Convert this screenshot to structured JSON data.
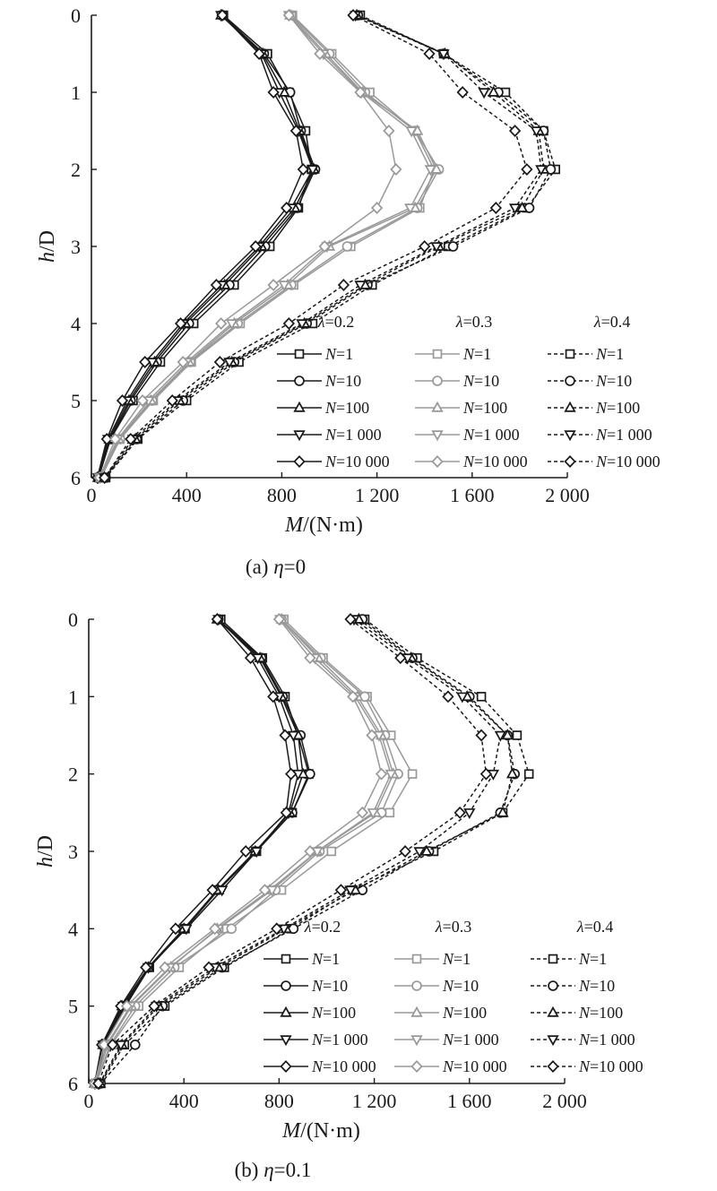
{
  "x_axis_label_var": "M",
  "x_axis_label_unit": "/(N·m)",
  "y_axis_label_h": "h",
  "y_axis_label_d": "/D",
  "legend_groups": [
    {
      "sym": "λ",
      "val": "=0.2"
    },
    {
      "sym": "λ",
      "val": "=0.3"
    },
    {
      "sym": "λ",
      "val": "=0.4"
    }
  ],
  "legend_entries": [
    {
      "var": "N",
      "val": "=1",
      "marker": "square"
    },
    {
      "var": "N",
      "val": "=10",
      "marker": "circle"
    },
    {
      "var": "N",
      "val": "=100",
      "marker": "triangle-up"
    },
    {
      "var": "N",
      "val": "=1 000",
      "marker": "triangle-down"
    },
    {
      "var": "N",
      "val": "=10 000",
      "marker": "diamond"
    }
  ],
  "styles": {
    "lambda_0.2": {
      "color": "#1a1a1a",
      "dash": "solid"
    },
    "lambda_0.3": {
      "color": "#999999",
      "dash": "solid"
    },
    "lambda_0.4": {
      "color": "#1a1a1a",
      "dash": "dashed"
    }
  },
  "chart_data": [
    {
      "type": "line",
      "caption_prefix": "(a) ",
      "caption_var": "η",
      "caption_val": "=0",
      "xlabel": "M/(N·m)",
      "ylabel": "h/D",
      "xlim": [
        0,
        2000
      ],
      "ylim": [
        6,
        0
      ],
      "y_inverted": true,
      "x_ticks": [
        0,
        400,
        800,
        1200,
        1600,
        2000
      ],
      "x_tick_labels": [
        "0",
        "400",
        "800",
        "1 200",
        "1 600",
        "2 000"
      ],
      "y_ticks": [
        0,
        1,
        2,
        3,
        4,
        5,
        6
      ],
      "y_tick_labels": [
        "0",
        "1",
        "2",
        "3",
        "4",
        "5",
        "6"
      ],
      "y": [
        0,
        0.5,
        1,
        1.5,
        2,
        2.5,
        3,
        3.5,
        4,
        4.5,
        5,
        5.5,
        6
      ],
      "series": [
        {
          "group": "λ=0.2",
          "name": "N=1",
          "marker": "square",
          "values": [
            555,
            740,
            830,
            900,
            925,
            870,
            750,
            600,
            430,
            290,
            175,
            80,
            30
          ]
        },
        {
          "group": "λ=0.2",
          "name": "N=10",
          "marker": "circle",
          "values": [
            550,
            725,
            835,
            880,
            940,
            865,
            730,
            580,
            410,
            275,
            165,
            80,
            30
          ]
        },
        {
          "group": "λ=0.2",
          "name": "N=100",
          "marker": "triangle-up",
          "values": [
            545,
            720,
            810,
            875,
            935,
            855,
            715,
            560,
            395,
            265,
            158,
            75,
            28
          ]
        },
        {
          "group": "λ=0.2",
          "name": "N=1 000",
          "marker": "triangle-down",
          "values": [
            545,
            715,
            790,
            870,
            930,
            840,
            705,
            548,
            385,
            255,
            150,
            70,
            28
          ]
        },
        {
          "group": "λ=0.2",
          "name": "N=10 000",
          "marker": "diamond",
          "values": [
            550,
            705,
            765,
            860,
            890,
            820,
            690,
            525,
            375,
            225,
            130,
            65,
            25
          ]
        },
        {
          "group": "λ=0.3",
          "name": "N=1",
          "marker": "square",
          "values": [
            845,
            1010,
            1170,
            1360,
            1440,
            1380,
            1090,
            850,
            625,
            420,
            260,
            120,
            40
          ]
        },
        {
          "group": "λ=0.3",
          "name": "N=10",
          "marker": "circle",
          "values": [
            840,
            1000,
            1150,
            1360,
            1460,
            1370,
            1075,
            840,
            615,
            415,
            255,
            120,
            40
          ]
        },
        {
          "group": "λ=0.3",
          "name": "N=100",
          "marker": "triangle-up",
          "values": [
            835,
            985,
            1140,
            1370,
            1450,
            1360,
            1000,
            825,
            600,
            410,
            250,
            115,
            40
          ]
        },
        {
          "group": "λ=0.3",
          "name": "N=1 000",
          "marker": "triangle-down",
          "values": [
            830,
            975,
            1135,
            1345,
            1425,
            1340,
            990,
            810,
            590,
            400,
            240,
            110,
            35
          ]
        },
        {
          "group": "λ=0.3",
          "name": "N=10 000",
          "marker": "diamond",
          "values": [
            830,
            960,
            1130,
            1250,
            1280,
            1200,
            980,
            765,
            545,
            385,
            215,
            100,
            35
          ]
        },
        {
          "group": "λ=0.4",
          "name": "N=1",
          "marker": "square",
          "values": [
            1130,
            1480,
            1740,
            1900,
            1950,
            1830,
            1500,
            1180,
            930,
            620,
            400,
            195,
            60
          ]
        },
        {
          "group": "λ=0.4",
          "name": "N=10",
          "marker": "circle",
          "values": [
            1120,
            1480,
            1710,
            1900,
            1930,
            1840,
            1520,
            1160,
            905,
            600,
            385,
            190,
            60
          ]
        },
        {
          "group": "λ=0.4",
          "name": "N=100",
          "marker": "triangle-up",
          "values": [
            1115,
            1485,
            1690,
            1880,
            1900,
            1810,
            1460,
            1150,
            895,
            590,
            370,
            185,
            55
          ]
        },
        {
          "group": "λ=0.4",
          "name": "N=1 000",
          "marker": "triangle-down",
          "values": [
            1110,
            1480,
            1650,
            1870,
            1890,
            1780,
            1450,
            1130,
            885,
            580,
            360,
            175,
            55
          ]
        },
        {
          "group": "λ=0.4",
          "name": "N=10 000",
          "marker": "diamond",
          "values": [
            1100,
            1420,
            1560,
            1780,
            1830,
            1700,
            1400,
            1060,
            830,
            540,
            340,
            165,
            55
          ]
        }
      ]
    },
    {
      "type": "line",
      "caption_prefix": "(b) ",
      "caption_var": "η",
      "caption_val": "=0.1",
      "xlabel": "M/(N·m)",
      "ylabel": "h/D",
      "xlim": [
        0,
        2000
      ],
      "ylim": [
        6,
        0
      ],
      "y_inverted": true,
      "x_ticks": [
        0,
        400,
        800,
        1200,
        1600,
        2000
      ],
      "x_tick_labels": [
        "0",
        "400",
        "800",
        "1 200",
        "1 600",
        "2 000"
      ],
      "y_ticks": [
        0,
        1,
        2,
        3,
        4,
        5,
        6
      ],
      "y_tick_labels": [
        "0",
        "1",
        "2",
        "3",
        "4",
        "5",
        "6"
      ],
      "y": [
        0,
        0.5,
        1,
        1.5,
        2,
        2.5,
        3,
        3.5,
        4,
        4.5,
        5,
        5.5,
        6
      ],
      "series": [
        {
          "group": "λ=0.2",
          "name": "N=1",
          "marker": "square",
          "values": [
            555,
            730,
            825,
            880,
            925,
            855,
            705,
            545,
            405,
            255,
            155,
            65,
            30
          ]
        },
        {
          "group": "λ=0.2",
          "name": "N=10",
          "marker": "circle",
          "values": [
            545,
            725,
            815,
            890,
            930,
            855,
            700,
            540,
            400,
            250,
            150,
            65,
            28
          ]
        },
        {
          "group": "λ=0.2",
          "name": "N=100",
          "marker": "triangle-up",
          "values": [
            540,
            720,
            810,
            880,
            900,
            845,
            700,
            545,
            400,
            250,
            140,
            60,
            25
          ]
        },
        {
          "group": "λ=0.2",
          "name": "N=1 000",
          "marker": "triangle-down",
          "values": [
            545,
            710,
            800,
            860,
            880,
            840,
            705,
            560,
            410,
            250,
            145,
            60,
            25
          ]
        },
        {
          "group": "λ=0.2",
          "name": "N=10 000",
          "marker": "diamond",
          "values": [
            540,
            680,
            775,
            825,
            850,
            830,
            660,
            520,
            365,
            240,
            135,
            55,
            25
          ]
        },
        {
          "group": "λ=0.3",
          "name": "N=1",
          "marker": "square",
          "values": [
            820,
            985,
            1170,
            1270,
            1360,
            1265,
            1020,
            810,
            580,
            380,
            210,
            95,
            30
          ]
        },
        {
          "group": "λ=0.3",
          "name": "N=10",
          "marker": "circle",
          "values": [
            810,
            975,
            1160,
            1245,
            1300,
            1230,
            970,
            785,
            600,
            360,
            195,
            90,
            30
          ]
        },
        {
          "group": "λ=0.3",
          "name": "N=100",
          "marker": "triangle-up",
          "values": [
            810,
            965,
            1130,
            1230,
            1280,
            1205,
            960,
            760,
            540,
            345,
            180,
            80,
            28
          ]
        },
        {
          "group": "λ=0.3",
          "name": "N=1 000",
          "marker": "triangle-down",
          "values": [
            805,
            950,
            1120,
            1220,
            1270,
            1195,
            960,
            770,
            545,
            340,
            175,
            75,
            28
          ]
        },
        {
          "group": "λ=0.3",
          "name": "N=10 000",
          "marker": "diamond",
          "values": [
            800,
            930,
            1110,
            1190,
            1230,
            1150,
            930,
            740,
            530,
            320,
            160,
            65,
            25
          ]
        },
        {
          "group": "λ=0.4",
          "name": "N=1",
          "marker": "square",
          "values": [
            1160,
            1380,
            1650,
            1800,
            1850,
            1740,
            1450,
            1110,
            850,
            570,
            320,
            150,
            50
          ]
        },
        {
          "group": "λ=0.4",
          "name": "N=10",
          "marker": "circle",
          "values": [
            1150,
            1360,
            1600,
            1760,
            1790,
            1730,
            1430,
            1150,
            860,
            560,
            310,
            195,
            50
          ]
        },
        {
          "group": "λ=0.4",
          "name": "N=100",
          "marker": "triangle-up",
          "values": [
            1135,
            1355,
            1590,
            1760,
            1780,
            1740,
            1420,
            1120,
            830,
            545,
            295,
            140,
            48
          ]
        },
        {
          "group": "λ=0.4",
          "name": "N=1 000",
          "marker": "triangle-down",
          "values": [
            1115,
            1340,
            1570,
            1730,
            1700,
            1600,
            1390,
            1100,
            820,
            530,
            285,
            135,
            45
          ]
        },
        {
          "group": "λ=0.4",
          "name": "N=10 000",
          "marker": "diamond",
          "values": [
            1100,
            1310,
            1510,
            1650,
            1670,
            1560,
            1330,
            1060,
            790,
            505,
            275,
            100,
            40
          ]
        }
      ]
    }
  ]
}
